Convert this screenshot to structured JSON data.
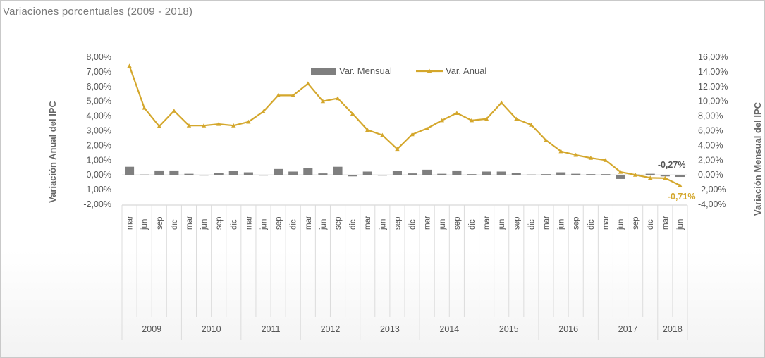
{
  "title": "Variaciones porcentuales (2009  -  2018)",
  "chart_data": {
    "type": "bar+line",
    "categories": [
      "mar",
      "jun",
      "sep",
      "dic",
      "mar",
      "jun",
      "sep",
      "dic",
      "mar",
      "jun",
      "sep",
      "dic",
      "mar",
      "jun",
      "sep",
      "dic",
      "mar",
      "jun",
      "sep",
      "dic",
      "mar",
      "jun",
      "sep",
      "dic",
      "mar",
      "jun",
      "sep",
      "dic",
      "mar",
      "jun",
      "sep",
      "dic",
      "mar",
      "jun",
      "sep",
      "dic",
      "mar",
      "jun"
    ],
    "groups": [
      {
        "label": "2009",
        "count": 4
      },
      {
        "label": "2010",
        "count": 4
      },
      {
        "label": "2011",
        "count": 4
      },
      {
        "label": "2012",
        "count": 4
      },
      {
        "label": "2013",
        "count": 4
      },
      {
        "label": "2014",
        "count": 4
      },
      {
        "label": "2015",
        "count": 4
      },
      {
        "label": "2016",
        "count": 4
      },
      {
        "label": "2017",
        "count": 4
      },
      {
        "label": "2018",
        "count": 2
      }
    ],
    "series": [
      {
        "name": "Var. Mensual",
        "type": "bar",
        "axis": "right",
        "color": "#7f7f7f",
        "values": [
          1.1,
          0.05,
          0.6,
          0.6,
          0.15,
          0.0,
          0.25,
          0.5,
          0.35,
          0.0,
          0.8,
          0.45,
          0.9,
          0.2,
          1.1,
          -0.2,
          0.45,
          -0.1,
          0.55,
          0.2,
          0.7,
          0.15,
          0.6,
          0.1,
          0.45,
          0.45,
          0.25,
          0.05,
          0.1,
          0.35,
          0.15,
          0.1,
          0.1,
          -0.55,
          0.05,
          0.15,
          -0.2,
          -0.27
        ]
      },
      {
        "name": "Var. Anual",
        "type": "line",
        "axis": "left",
        "color": "#d4a72c",
        "values": [
          7.4,
          4.55,
          3.3,
          4.35,
          3.35,
          3.35,
          3.45,
          3.35,
          3.6,
          4.3,
          5.4,
          5.4,
          6.2,
          5.0,
          5.2,
          4.15,
          3.05,
          2.7,
          1.75,
          2.75,
          3.15,
          3.7,
          4.2,
          3.7,
          3.8,
          4.9,
          3.8,
          3.4,
          2.35,
          1.6,
          1.35,
          1.15,
          1.0,
          0.2,
          0.0,
          -0.2,
          -0.22,
          -0.71
        ]
      }
    ],
    "y_left": {
      "label": "Variación Anual del IPC",
      "min": -2,
      "max": 8,
      "step": 1,
      "ticks": [
        "-2,00%",
        "-1,00%",
        "0,00%",
        "1,00%",
        "2,00%",
        "3,00%",
        "4,00%",
        "5,00%",
        "6,00%",
        "7,00%",
        "8,00%"
      ]
    },
    "y_right": {
      "label": "Variación Mensual del IPC",
      "min": -4,
      "max": 16,
      "step": 2,
      "ticks": [
        "-4,00%",
        "-2,00%",
        "0,00%",
        "2,00%",
        "4,00%",
        "6,00%",
        "8,00%",
        "10,00%",
        "12,00%",
        "14,00%",
        "16,00%"
      ]
    },
    "annotations": [
      {
        "text": "-0,27%",
        "series": "Var. Mensual",
        "index": 37,
        "color": "#555555"
      },
      {
        "text": "-0,71%",
        "series": "Var. Anual",
        "index": 37,
        "color": "#d4a72c"
      }
    ],
    "legend": "top-center",
    "grid": false
  }
}
